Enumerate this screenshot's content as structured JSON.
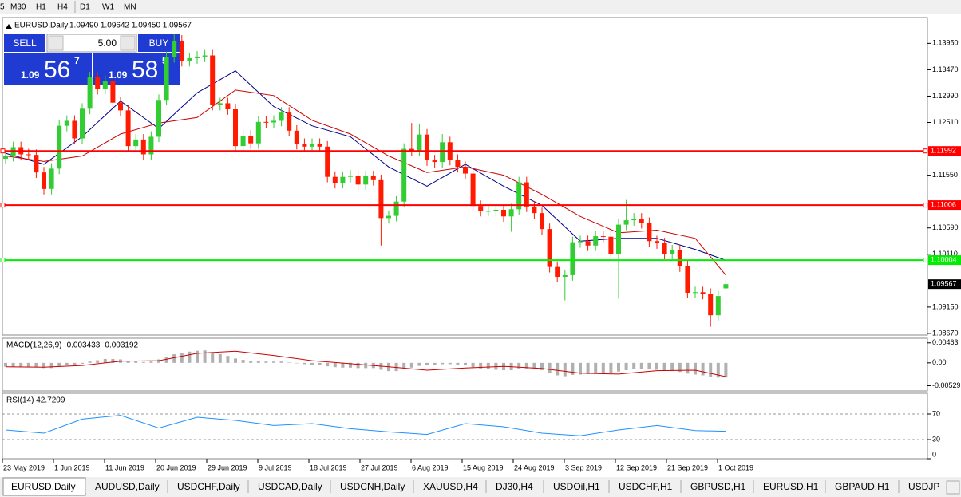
{
  "toolbar": {
    "timeframes": [
      "5",
      "M30",
      "H1",
      "H4",
      "D1",
      "W1",
      "MN"
    ]
  },
  "chart_data": {
    "type": "candlestick",
    "title": "EURUSD,Daily",
    "ohlc_text": "1.09490 1.09642 1.09450 1.09567",
    "up_color": "#32cd32",
    "down_color": "#ff1a00",
    "open": [
      1.1185,
      1.119,
      1.1206,
      1.1193,
      1.1192,
      1.116,
      1.113,
      1.1167,
      1.1245,
      1.1254,
      1.1222,
      1.1276,
      1.1333,
      1.1312,
      1.1327,
      1.1287,
      1.1273,
      1.1208,
      1.122,
      1.1193,
      1.1225,
      1.1292,
      1.137,
      1.14,
      1.1363,
      1.1368,
      1.1371,
      1.1373,
      1.1283,
      1.1286,
      1.1275,
      1.1208,
      1.1227,
      1.1213,
      1.1252,
      1.1251,
      1.1254,
      1.1269,
      1.1236,
      1.1212,
      1.1207,
      1.1212,
      1.1207,
      1.1152,
      1.1141,
      1.1152,
      1.1154,
      1.1138,
      1.1153,
      1.1146,
      1.1077,
      1.1081,
      1.1107,
      1.1203,
      1.12,
      1.1229,
      1.1182,
      1.1179,
      1.1215,
      1.1183,
      1.117,
      1.1158,
      1.1099,
      1.109,
      1.109,
      1.1092,
      1.108,
      1.1093,
      1.1142,
      1.1098,
      1.1086,
      1.1057,
      1.0988,
      1.097,
      1.0973,
      1.1033,
      1.1035,
      1.1027,
      1.1044,
      1.1043,
      1.1011,
      1.1065,
      1.1073,
      1.1076,
      1.1068,
      1.1035,
      1.1031,
      1.1012,
      1.1018,
      1.0989,
      1.0941,
      1.0942,
      1.0939,
      1.09,
      1.0949
    ],
    "high": [
      1.12,
      1.1216,
      1.1216,
      1.1203,
      1.1202,
      1.117,
      1.1177,
      1.1255,
      1.1264,
      1.1264,
      1.1286,
      1.1343,
      1.1343,
      1.1337,
      1.1337,
      1.1297,
      1.1283,
      1.123,
      1.123,
      1.1235,
      1.1302,
      1.138,
      1.1412,
      1.141,
      1.1378,
      1.1381,
      1.1383,
      1.1383,
      1.1296,
      1.1296,
      1.1285,
      1.1237,
      1.1237,
      1.1262,
      1.1262,
      1.1264,
      1.1279,
      1.1279,
      1.1246,
      1.1222,
      1.1222,
      1.1222,
      1.1217,
      1.1162,
      1.1162,
      1.1164,
      1.1164,
      1.1163,
      1.1163,
      1.1156,
      1.1091,
      1.1117,
      1.1213,
      1.125,
      1.1249,
      1.1239,
      1.1192,
      1.123,
      1.1225,
      1.1193,
      1.118,
      1.1168,
      1.1109,
      1.11,
      1.1102,
      1.1102,
      1.1103,
      1.1152,
      1.1152,
      1.1108,
      1.1096,
      1.1067,
      1.0998,
      1.0983,
      1.1043,
      1.1045,
      1.1045,
      1.1054,
      1.1054,
      1.1053,
      1.1075,
      1.111,
      1.1086,
      1.1086,
      1.1078,
      1.1045,
      1.1041,
      1.1028,
      1.1028,
      1.0999,
      1.0952,
      1.0952,
      1.0949,
      1.0945,
      1.09642
    ],
    "low": [
      1.1175,
      1.118,
      1.1183,
      1.1182,
      1.115,
      1.112,
      1.112,
      1.1157,
      1.1235,
      1.1212,
      1.1212,
      1.1266,
      1.1302,
      1.1302,
      1.1277,
      1.1263,
      1.1198,
      1.1198,
      1.1183,
      1.1183,
      1.1215,
      1.1282,
      1.136,
      1.1353,
      1.1353,
      1.1358,
      1.1361,
      1.1273,
      1.1273,
      1.1265,
      1.1198,
      1.1198,
      1.1203,
      1.1203,
      1.1241,
      1.1241,
      1.1244,
      1.1226,
      1.1202,
      1.1197,
      1.1197,
      1.1197,
      1.1142,
      1.1131,
      1.1131,
      1.1142,
      1.1128,
      1.1128,
      1.1136,
      1.1027,
      1.1067,
      1.1071,
      1.1097,
      1.119,
      1.119,
      1.1172,
      1.1169,
      1.1169,
      1.1173,
      1.116,
      1.1148,
      1.1089,
      1.108,
      1.108,
      1.108,
      1.107,
      1.1052,
      1.1083,
      1.1088,
      1.1076,
      1.1047,
      1.0978,
      1.096,
      1.0927,
      1.0963,
      1.1023,
      1.1017,
      1.1017,
      1.1033,
      1.1001,
      1.093,
      1.1055,
      1.1063,
      1.1058,
      1.1025,
      1.1021,
      1.1002,
      1.1002,
      1.0979,
      1.0931,
      1.0931,
      1.0929,
      1.0879,
      1.089,
      1.0945
    ],
    "close": [
      1.119,
      1.1206,
      1.1193,
      1.1192,
      1.116,
      1.113,
      1.1167,
      1.1245,
      1.1254,
      1.1222,
      1.1276,
      1.1333,
      1.1312,
      1.1327,
      1.1287,
      1.1273,
      1.1208,
      1.122,
      1.1193,
      1.1225,
      1.1292,
      1.137,
      1.14,
      1.1363,
      1.1368,
      1.1371,
      1.1373,
      1.1283,
      1.1286,
      1.1275,
      1.1208,
      1.1227,
      1.1213,
      1.1252,
      1.1251,
      1.1254,
      1.1269,
      1.1236,
      1.1212,
      1.1207,
      1.1212,
      1.1207,
      1.1152,
      1.1141,
      1.1152,
      1.1154,
      1.1138,
      1.1153,
      1.1146,
      1.1077,
      1.1081,
      1.1107,
      1.1203,
      1.12,
      1.1229,
      1.1182,
      1.1179,
      1.1215,
      1.1183,
      1.117,
      1.1158,
      1.1099,
      1.109,
      1.109,
      1.1092,
      1.108,
      1.1093,
      1.1142,
      1.1098,
      1.1086,
      1.1057,
      1.0988,
      1.097,
      1.0973,
      1.1033,
      1.1035,
      1.1027,
      1.1044,
      1.1043,
      1.1011,
      1.1065,
      1.1073,
      1.1076,
      1.1068,
      1.1035,
      1.1031,
      1.1012,
      1.1018,
      1.0989,
      1.0941,
      1.0942,
      1.0939,
      1.09,
      1.0935,
      1.09567
    ],
    "ylim": [
      1.0864,
      1.1442
    ],
    "yticks": [
      {
        "value": 1.1395,
        "label": "1.13950"
      },
      {
        "value": 1.1347,
        "label": "1.13470"
      },
      {
        "value": 1.1299,
        "label": "1.12990"
      },
      {
        "value": 1.1251,
        "label": "1.12510"
      },
      {
        "value": 1.1155,
        "label": "1.11550"
      },
      {
        "value": 1.1059,
        "label": "1.10590"
      },
      {
        "value": 1.1011,
        "label": "1.10110"
      },
      {
        "value": 1.0915,
        "label": "1.09150"
      },
      {
        "value": 1.0867,
        "label": "1.08670"
      }
    ],
    "x_labels": [
      "23 May 2019",
      "1 Jun 2019",
      "11 Jun 2019",
      "20 Jun 2019",
      "29 Jun 2019",
      "9 Jul 2019",
      "18 Jul 2019",
      "27 Jul 2019",
      "6 Aug 2019",
      "15 Aug 2019",
      "24 Aug 2019",
      "3 Sep 2019",
      "12 Sep 2019",
      "21 Sep 2019",
      "1 Oct 2019"
    ],
    "levels": [
      {
        "value": 1.11992,
        "label": "1.11992",
        "color": "#ff0000"
      },
      {
        "value": 1.11006,
        "label": "1.11006",
        "color": "#ff0000"
      },
      {
        "value": 1.10004,
        "label": "1.10004",
        "color": "#00ee00"
      }
    ],
    "current_price": {
      "value": 1.09567,
      "label": "1.09567"
    },
    "moving_averages": [
      {
        "color": "#00008b",
        "values": [
          1.1195,
          1.1175,
          1.1225,
          1.129,
          1.124,
          1.1305,
          1.1345,
          1.128,
          1.1245,
          1.1225,
          1.117,
          1.1135,
          1.1175,
          1.1135,
          1.11,
          1.1035,
          1.104,
          1.104,
          1.102,
          1.1
        ]
      },
      {
        "color": "#cc0000",
        "values": [
          1.119,
          1.118,
          1.119,
          1.123,
          1.125,
          1.126,
          1.131,
          1.13,
          1.1255,
          1.123,
          1.119,
          1.116,
          1.117,
          1.1155,
          1.112,
          1.108,
          1.105,
          1.1055,
          1.104,
          1.0973
        ]
      }
    ]
  },
  "indicator_x": [
    0,
    5,
    10,
    15,
    20,
    25,
    30,
    35,
    40,
    45,
    50,
    55,
    60,
    65,
    70,
    75,
    80,
    85,
    90,
    94
  ],
  "macd": {
    "title": "MACD(12,26,9) -0.003433 -0.003192",
    "ylim": [
      -0.0065,
      0.0057
    ],
    "yticks": [
      {
        "value": 0.00463,
        "label": "0.00463"
      },
      {
        "value": 0,
        "label": "0.00"
      },
      {
        "value": -0.00529,
        "label": "-0.00529"
      }
    ],
    "histogram": [
      -0.0009,
      -0.0009,
      -0.0009,
      -0.0009,
      -0.001,
      -0.0012,
      -0.0012,
      -0.0009,
      -0.0006,
      -0.0005,
      -0.0002,
      0.0003,
      0.0006,
      0.0009,
      0.0009,
      0.0008,
      0.0005,
      0.0004,
      0.0002,
      0.0003,
      0.0008,
      0.0014,
      0.002,
      0.0023,
      0.0026,
      0.0028,
      0.0029,
      0.0024,
      0.002,
      0.0016,
      0.001,
      0.0007,
      0.0004,
      0.0004,
      0.0003,
      0.0003,
      0.0003,
      0.0001,
      -0.0001,
      -0.0003,
      -0.0004,
      -0.0005,
      -0.0008,
      -0.001,
      -0.0011,
      -0.0011,
      -0.0012,
      -0.0012,
      -0.0012,
      -0.0016,
      -0.0019,
      -0.0019,
      -0.0014,
      -0.0011,
      -0.0007,
      -0.0006,
      -0.0005,
      -0.0003,
      -0.0003,
      -0.0004,
      -0.0006,
      -0.001,
      -0.0013,
      -0.0015,
      -0.0016,
      -0.0017,
      -0.0017,
      -0.0013,
      -0.0013,
      -0.0014,
      -0.0017,
      -0.0024,
      -0.0029,
      -0.0031,
      -0.0028,
      -0.0027,
      -0.0026,
      -0.0024,
      -0.0023,
      -0.0024,
      -0.002,
      -0.0017,
      -0.0015,
      -0.0014,
      -0.0015,
      -0.0016,
      -0.0018,
      -0.0019,
      -0.0021,
      -0.0025,
      -0.0027,
      -0.0029,
      -0.0033,
      -0.0034,
      -0.0034
    ],
    "signal": [
      -0.0009,
      -0.001,
      -0.0006,
      0.0004,
      0.0005,
      0.0022,
      0.0027,
      0.0017,
      0.0005,
      -0.0002,
      -0.0009,
      -0.0017,
      -0.0012,
      -0.0008,
      -0.0013,
      -0.0024,
      -0.0026,
      -0.0018,
      -0.0017,
      -0.0032
    ]
  },
  "rsi": {
    "title": "RSI(14) 42.7209",
    "ylim": [
      0,
      102.5
    ],
    "yticks": [
      70,
      30,
      0
    ],
    "levels": [
      70,
      30
    ],
    "values": [
      45,
      40,
      62,
      68,
      48,
      65,
      60,
      52,
      55,
      47,
      42,
      38,
      55,
      50,
      40,
      36,
      45,
      52,
      44,
      43
    ]
  },
  "trade_panel": {
    "sell": "SELL",
    "buy": "BUY",
    "lot": "5.00",
    "bid": {
      "big": "1.09",
      "pips": "56",
      "frac": "7"
    },
    "ask": {
      "big": "1.09",
      "pips": "58",
      "frac": "5"
    }
  },
  "tabs": [
    "EURUSD,Daily",
    "AUDUSD,Daily",
    "USDCHF,Daily",
    "USDCAD,Daily",
    "USDCNH,Daily",
    "XAUUSD,H4",
    "DJ30,H4",
    "USDOil,H1",
    "USDCHF,H1",
    "GBPUSD,H1",
    "EURUSD,H1",
    "GBPAUD,H1",
    "USDJP"
  ]
}
